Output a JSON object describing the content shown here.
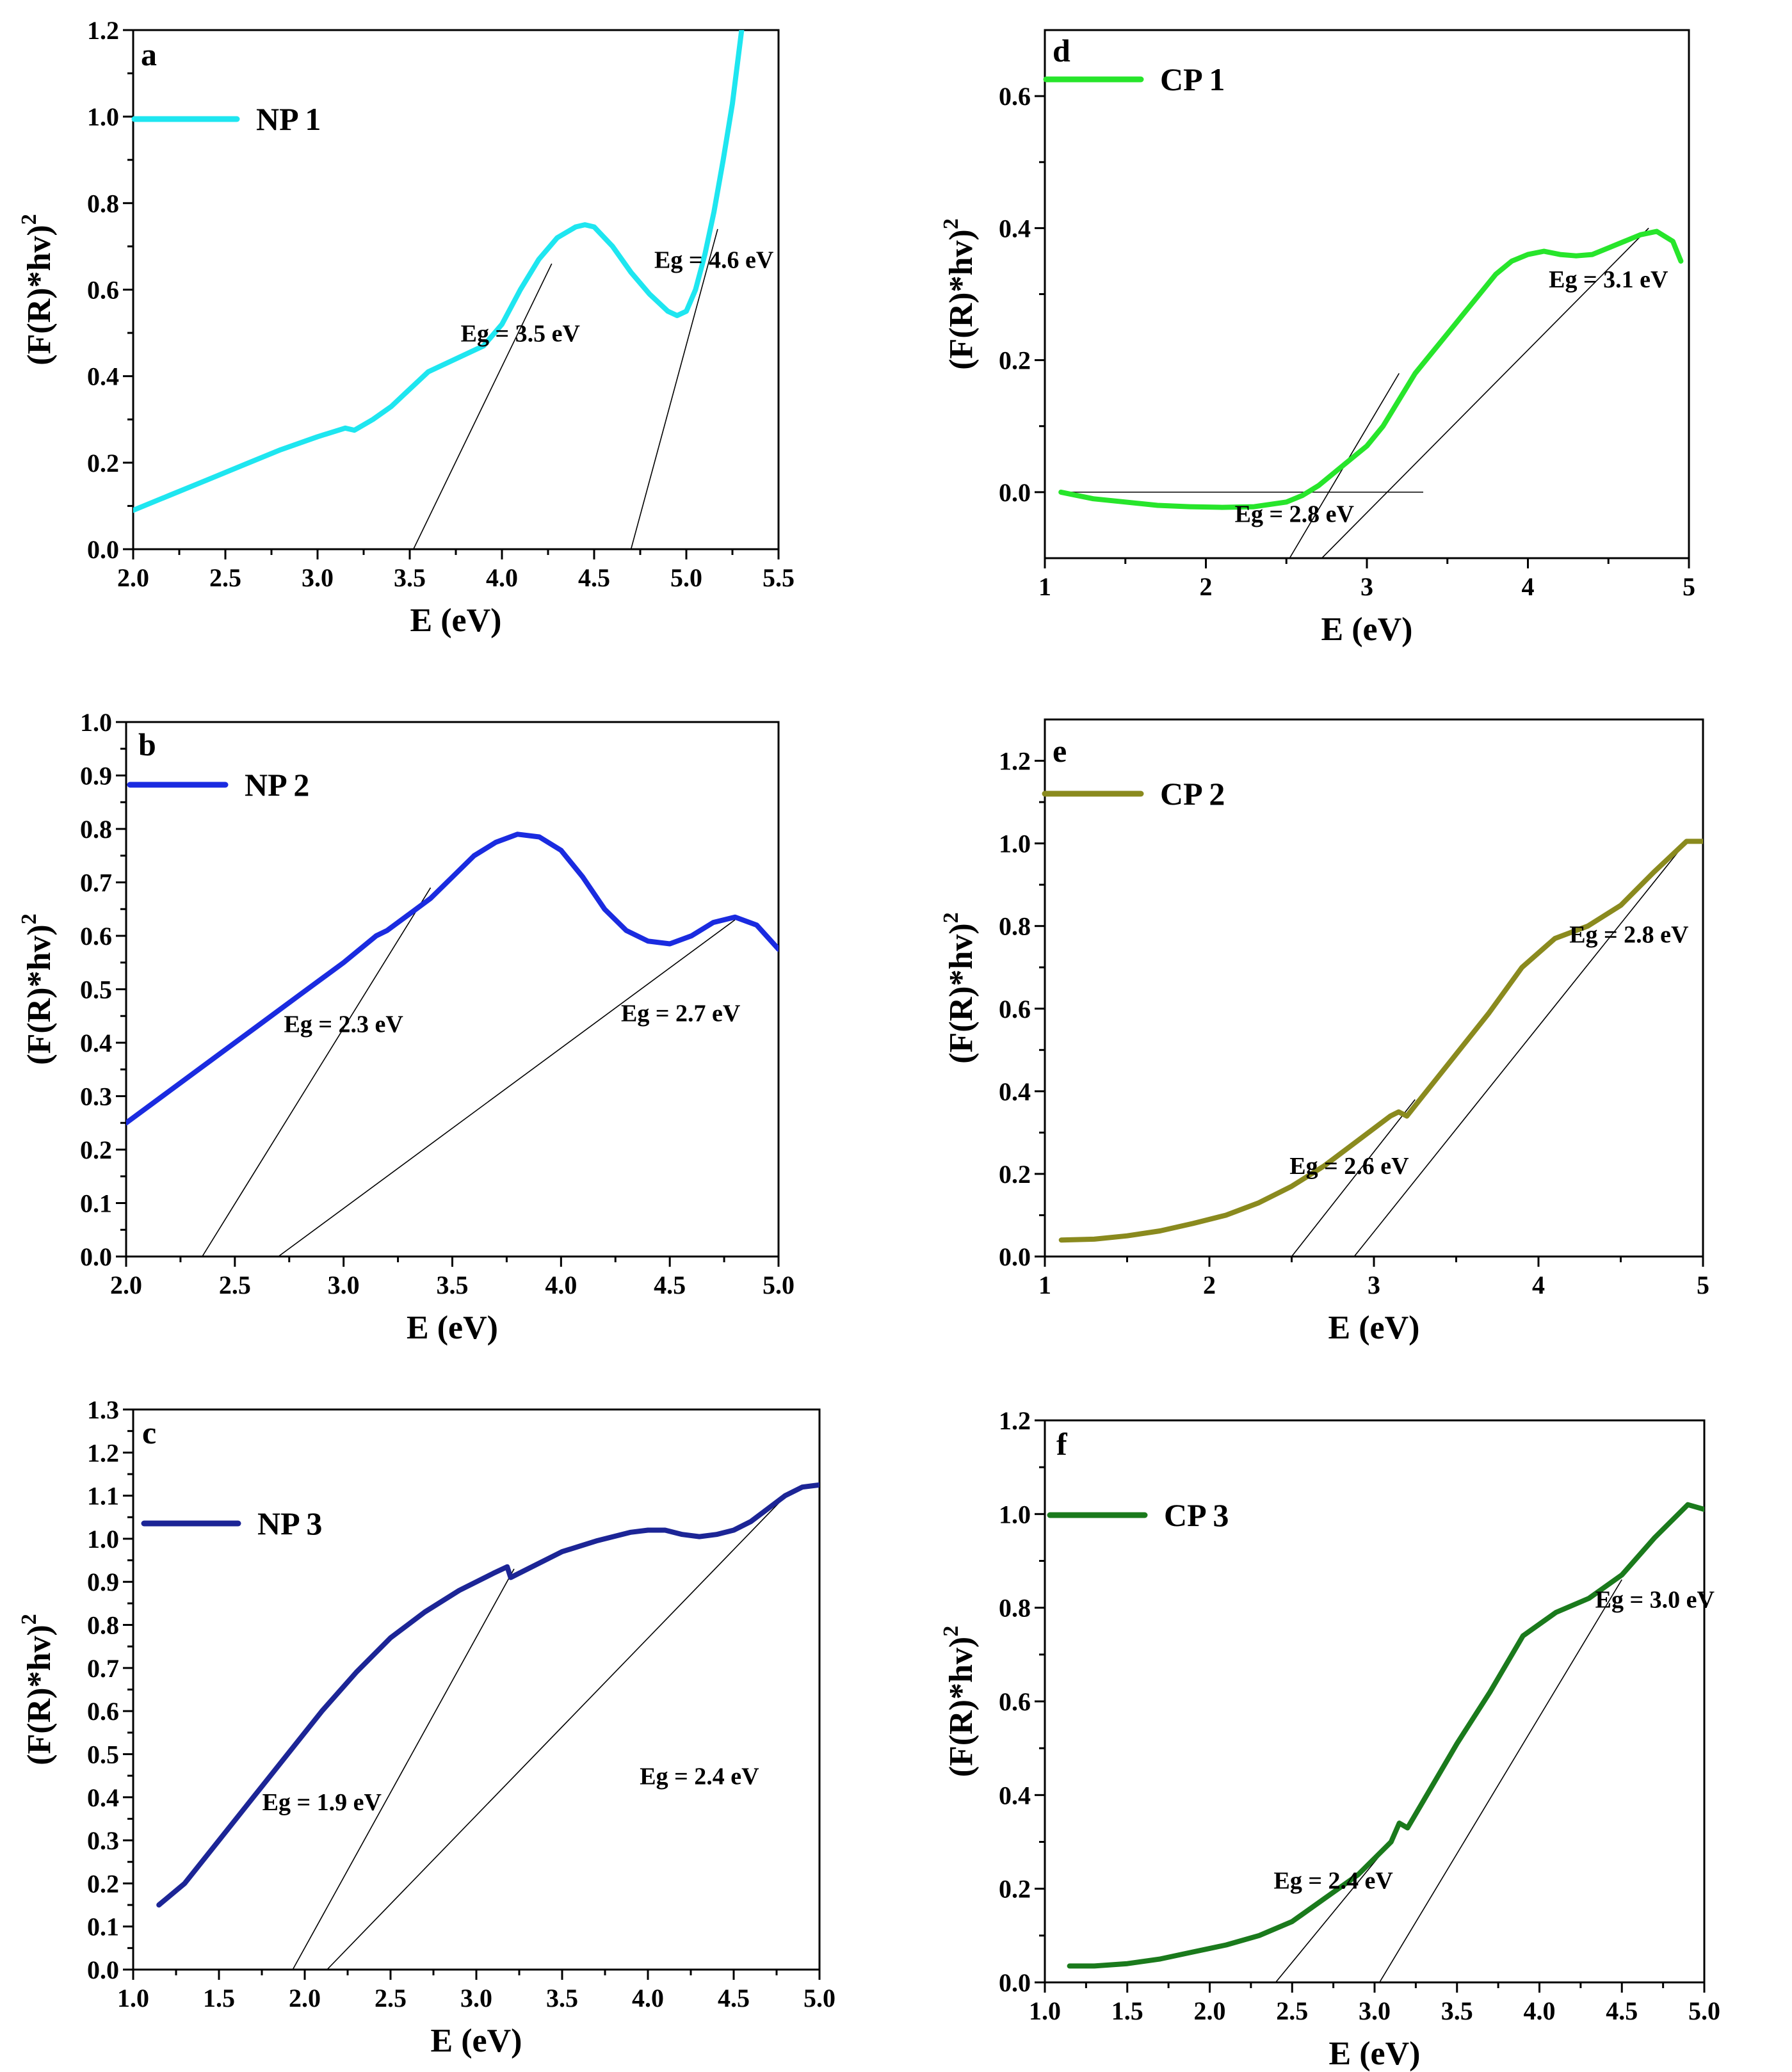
{
  "chart_data": [
    {
      "id": "a",
      "type": "line",
      "panel_label": "a",
      "legend": "NP 1",
      "color": "#1ee6f0",
      "xlabel": "E (eV)",
      "ylabel": "(F(R)*hv)²",
      "xlim": [
        2.0,
        5.5
      ],
      "ylim": [
        0.0,
        1.2
      ],
      "xticks": [
        2.0,
        2.5,
        3.0,
        3.5,
        4.0,
        4.5,
        5.0,
        5.5
      ],
      "xdec": 1,
      "yticks": [
        0.0,
        0.2,
        0.4,
        0.6,
        0.8,
        1.0,
        1.2
      ],
      "ydec": 1,
      "series": [
        {
          "name": "NP 1",
          "x": [
            2.0,
            2.2,
            2.4,
            2.6,
            2.8,
            3.0,
            3.15,
            3.2,
            3.3,
            3.4,
            3.5,
            3.6,
            3.7,
            3.8,
            3.9,
            4.0,
            4.1,
            4.2,
            4.3,
            4.4,
            4.45,
            4.5,
            4.6,
            4.7,
            4.8,
            4.9,
            4.95,
            5.0,
            5.05,
            5.1,
            5.15,
            5.2,
            5.25,
            5.3
          ],
          "y": [
            0.09,
            0.125,
            0.16,
            0.195,
            0.23,
            0.26,
            0.28,
            0.275,
            0.3,
            0.33,
            0.37,
            0.41,
            0.43,
            0.45,
            0.47,
            0.52,
            0.6,
            0.67,
            0.72,
            0.745,
            0.75,
            0.745,
            0.7,
            0.64,
            0.59,
            0.55,
            0.54,
            0.55,
            0.6,
            0.68,
            0.78,
            0.9,
            1.03,
            1.2
          ]
        }
      ],
      "fit_lines": [
        [
          [
            3.52,
            0.0
          ],
          [
            4.27,
            0.66
          ]
        ],
        [
          [
            4.7,
            0.0
          ],
          [
            5.17,
            0.74
          ]
        ]
      ],
      "annotations": [
        {
          "text": "Eg = 3.5 eV",
          "x": 4.1,
          "y": 0.48
        },
        {
          "text": "Eg = 4.6 eV",
          "x": 5.15,
          "y": 0.65
        }
      ]
    },
    {
      "id": "d",
      "type": "line",
      "panel_label": "d",
      "legend": "CP 1",
      "color": "#27e52b",
      "xlabel": "E (eV)",
      "ylabel": "(F(R)*hv)²",
      "xlim": [
        1.0,
        5.0
      ],
      "ylim": [
        -0.1,
        0.7
      ],
      "xticks": [
        1,
        2,
        3,
        4,
        5
      ],
      "xdec": 0,
      "yticks": [
        0.0,
        0.2,
        0.4,
        0.6
      ],
      "ydec": 1,
      "series": [
        {
          "name": "CP 1",
          "x": [
            1.1,
            1.3,
            1.5,
            1.7,
            1.9,
            2.1,
            2.3,
            2.5,
            2.6,
            2.7,
            2.8,
            2.9,
            3.0,
            3.1,
            3.2,
            3.3,
            3.4,
            3.5,
            3.6,
            3.7,
            3.8,
            3.9,
            4.0,
            4.1,
            4.2,
            4.3,
            4.4,
            4.5,
            4.6,
            4.7,
            4.8,
            4.9,
            4.95
          ],
          "y": [
            0.0,
            -0.01,
            -0.015,
            -0.02,
            -0.022,
            -0.023,
            -0.022,
            -0.015,
            -0.005,
            0.01,
            0.03,
            0.05,
            0.07,
            0.1,
            0.14,
            0.18,
            0.21,
            0.24,
            0.27,
            0.3,
            0.33,
            0.35,
            0.36,
            0.365,
            0.36,
            0.358,
            0.36,
            0.37,
            0.38,
            0.39,
            0.395,
            0.38,
            0.35
          ]
        }
      ],
      "fit_lines": [
        [
          [
            1.1,
            0.0
          ],
          [
            3.35,
            0.0
          ]
        ],
        [
          [
            2.52,
            -0.1
          ],
          [
            3.2,
            0.18
          ]
        ],
        [
          [
            2.72,
            -0.1
          ],
          [
            4.75,
            0.4
          ]
        ]
      ],
      "annotations": [
        {
          "text": "Eg = 3.1 eV",
          "x": 4.5,
          "y": 0.31
        },
        {
          "text": "Eg = 2.8 eV",
          "x": 2.55,
          "y": -0.045
        }
      ]
    },
    {
      "id": "b",
      "type": "line",
      "panel_label": "b",
      "legend": "NP 2",
      "color": "#1a2be0",
      "xlabel": "E (eV)",
      "ylabel": "(F(R)*hv)²",
      "xlim": [
        2.0,
        5.0
      ],
      "ylim": [
        0.0,
        1.0
      ],
      "xticks": [
        2.0,
        2.5,
        3.0,
        3.5,
        4.0,
        4.5,
        5.0
      ],
      "xdec": 1,
      "yticks": [
        0.0,
        0.1,
        0.2,
        0.3,
        0.4,
        0.5,
        0.6,
        0.7,
        0.8,
        0.9,
        1.0
      ],
      "ydec": 1,
      "series": [
        {
          "name": "NP 2",
          "x": [
            2.0,
            2.2,
            2.4,
            2.6,
            2.8,
            3.0,
            3.15,
            3.2,
            3.3,
            3.4,
            3.5,
            3.6,
            3.7,
            3.8,
            3.9,
            4.0,
            4.1,
            4.2,
            4.3,
            4.4,
            4.5,
            4.6,
            4.7,
            4.8,
            4.9,
            5.0
          ],
          "y": [
            0.25,
            0.31,
            0.37,
            0.43,
            0.49,
            0.55,
            0.6,
            0.61,
            0.64,
            0.67,
            0.71,
            0.75,
            0.775,
            0.79,
            0.785,
            0.76,
            0.71,
            0.65,
            0.61,
            0.59,
            0.585,
            0.6,
            0.625,
            0.635,
            0.62,
            0.575
          ]
        }
      ],
      "fit_lines": [
        [
          [
            2.35,
            0.0
          ],
          [
            3.4,
            0.69
          ]
        ],
        [
          [
            2.7,
            0.0
          ],
          [
            4.8,
            0.63
          ]
        ]
      ],
      "annotations": [
        {
          "text": "Eg = 2.3 eV",
          "x": 3.0,
          "y": 0.42
        },
        {
          "text": "Eg = 2.7 eV",
          "x": 4.55,
          "y": 0.44
        }
      ]
    },
    {
      "id": "e",
      "type": "line",
      "panel_label": "e",
      "legend": "CP 2",
      "color": "#8a8a1e",
      "xlabel": "E (eV)",
      "ylabel": "(F(R)*hv)²",
      "xlim": [
        1.0,
        5.0
      ],
      "ylim": [
        0.0,
        1.3
      ],
      "xticks": [
        1,
        2,
        3,
        4,
        5
      ],
      "xdec": 0,
      "yticks": [
        0.0,
        0.2,
        0.4,
        0.6,
        0.8,
        1.0,
        1.2
      ],
      "ydec": 1,
      "series": [
        {
          "name": "CP 2",
          "x": [
            1.1,
            1.3,
            1.5,
            1.7,
            1.9,
            2.1,
            2.3,
            2.5,
            2.7,
            2.9,
            3.1,
            3.15,
            3.2,
            3.3,
            3.5,
            3.7,
            3.9,
            4.1,
            4.3,
            4.5,
            4.7,
            4.9,
            5.0
          ],
          "y": [
            0.04,
            0.042,
            0.05,
            0.062,
            0.08,
            0.1,
            0.13,
            0.17,
            0.22,
            0.28,
            0.34,
            0.35,
            0.34,
            0.39,
            0.49,
            0.59,
            0.7,
            0.77,
            0.8,
            0.85,
            0.93,
            1.005,
            1.005
          ]
        }
      ],
      "fit_lines": [
        [
          [
            2.5,
            0.0
          ],
          [
            3.25,
            0.38
          ]
        ],
        [
          [
            2.88,
            0.0
          ],
          [
            4.85,
            0.98
          ]
        ]
      ],
      "annotations": [
        {
          "text": "Eg = 2.8 eV",
          "x": 4.55,
          "y": 0.76
        },
        {
          "text": "Eg = 2.6 eV",
          "x": 2.85,
          "y": 0.2
        }
      ]
    },
    {
      "id": "c",
      "type": "line",
      "panel_label": "c",
      "legend": "NP 3",
      "color": "#1c2596",
      "xlabel": "E (eV)",
      "ylabel": "(F(R)*hv)²",
      "xlim": [
        1.0,
        5.0
      ],
      "ylim": [
        0.0,
        1.3
      ],
      "xticks": [
        1.0,
        1.5,
        2.0,
        2.5,
        3.0,
        3.5,
        4.0,
        4.5,
        5.0
      ],
      "xdec": 1,
      "yticks": [
        0.0,
        0.1,
        0.2,
        0.3,
        0.4,
        0.5,
        0.6,
        0.7,
        0.8,
        0.9,
        1.0,
        1.1,
        1.2,
        1.3
      ],
      "ydec": 1,
      "series": [
        {
          "name": "NP 3",
          "x": [
            1.15,
            1.3,
            1.5,
            1.7,
            1.9,
            2.1,
            2.3,
            2.5,
            2.7,
            2.9,
            3.1,
            3.18,
            3.2,
            3.3,
            3.5,
            3.7,
            3.9,
            4.0,
            4.1,
            4.2,
            4.3,
            4.4,
            4.5,
            4.6,
            4.7,
            4.8,
            4.9,
            5.0
          ],
          "y": [
            0.15,
            0.2,
            0.3,
            0.4,
            0.5,
            0.6,
            0.69,
            0.77,
            0.83,
            0.88,
            0.92,
            0.935,
            0.91,
            0.93,
            0.97,
            0.995,
            1.015,
            1.02,
            1.02,
            1.01,
            1.005,
            1.01,
            1.02,
            1.04,
            1.07,
            1.1,
            1.12,
            1.125
          ]
        }
      ],
      "fit_lines": [
        [
          [
            1.93,
            0.0
          ],
          [
            3.22,
            0.93
          ]
        ],
        [
          [
            2.13,
            0.0
          ],
          [
            4.78,
            1.09
          ]
        ]
      ],
      "annotations": [
        {
          "text": "Eg = 1.9 eV",
          "x": 2.1,
          "y": 0.37
        },
        {
          "text": "Eg = 2.4 eV",
          "x": 4.3,
          "y": 0.43
        }
      ]
    },
    {
      "id": "f",
      "type": "line",
      "panel_label": "f",
      "legend": "CP 3",
      "color": "#1a7a1c",
      "xlabel": "E (eV)",
      "ylabel": "(F(R)*hv)²",
      "xlim": [
        1.0,
        5.0
      ],
      "ylim": [
        0.0,
        1.2
      ],
      "xticks": [
        1.0,
        1.5,
        2.0,
        2.5,
        3.0,
        3.5,
        4.0,
        4.5,
        5.0
      ],
      "xdec": 1,
      "yticks": [
        0.0,
        0.2,
        0.4,
        0.6,
        0.8,
        1.0,
        1.2
      ],
      "ydec": 1,
      "series": [
        {
          "name": "CP 3",
          "x": [
            1.15,
            1.3,
            1.5,
            1.7,
            1.9,
            2.1,
            2.3,
            2.5,
            2.7,
            2.9,
            3.1,
            3.15,
            3.2,
            3.3,
            3.5,
            3.7,
            3.9,
            4.1,
            4.3,
            4.5,
            4.7,
            4.9,
            5.0
          ],
          "y": [
            0.035,
            0.035,
            0.04,
            0.05,
            0.065,
            0.08,
            0.1,
            0.13,
            0.18,
            0.23,
            0.3,
            0.34,
            0.33,
            0.39,
            0.51,
            0.62,
            0.74,
            0.79,
            0.82,
            0.87,
            0.95,
            1.02,
            1.01
          ]
        }
      ],
      "fit_lines": [
        [
          [
            2.4,
            0.0
          ],
          [
            3.1,
            0.3
          ]
        ],
        [
          [
            3.03,
            0.0
          ],
          [
            4.5,
            0.86
          ]
        ]
      ],
      "annotations": [
        {
          "text": "Eg = 3.0 eV",
          "x": 4.7,
          "y": 0.8
        },
        {
          "text": "Eg = 2.4 eV",
          "x": 2.75,
          "y": 0.2
        }
      ]
    }
  ]
}
